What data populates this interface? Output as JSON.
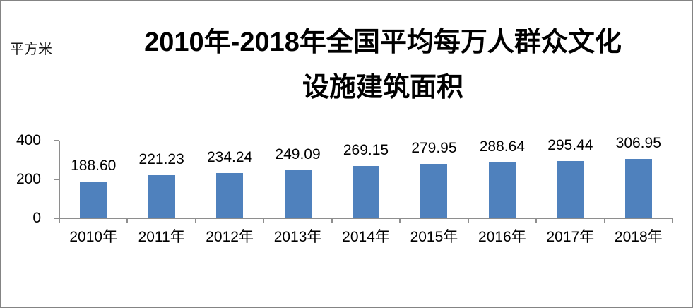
{
  "frame": {
    "border_color": "#848484",
    "background": "#ffffff"
  },
  "chart": {
    "unit_label": "平方米",
    "title_line1": "2010年-2018年全国平均每万人群众文化",
    "title_line2": "设施建筑面积"
  },
  "chart_data": {
    "type": "bar",
    "title": "2010年-2018年全国平均每万人群众文化设施建筑面积",
    "unit_label": "平方米",
    "categories": [
      "2010年",
      "2011年",
      "2012年",
      "2013年",
      "2014年",
      "2015年",
      "2016年",
      "2017年",
      "2018年"
    ],
    "values": [
      188.6,
      221.23,
      234.24,
      249.09,
      269.15,
      279.95,
      288.64,
      295.44,
      306.95
    ],
    "data_labels": [
      "188.60",
      "221.23",
      "234.24",
      "249.09",
      "269.15",
      "279.95",
      "288.64",
      "295.44",
      "306.95"
    ],
    "xlabel": "",
    "ylabel": "平方米",
    "yticks": [
      0,
      200,
      400
    ],
    "ytick_labels": [
      "0",
      "200",
      "400"
    ],
    "ylim": [
      0,
      400
    ],
    "bar_color": "#4F81BD",
    "axis_color": "#8E8E8E",
    "label_color": "#000000",
    "grid": false,
    "legend_position": "none",
    "data_labels_shown": true
  }
}
